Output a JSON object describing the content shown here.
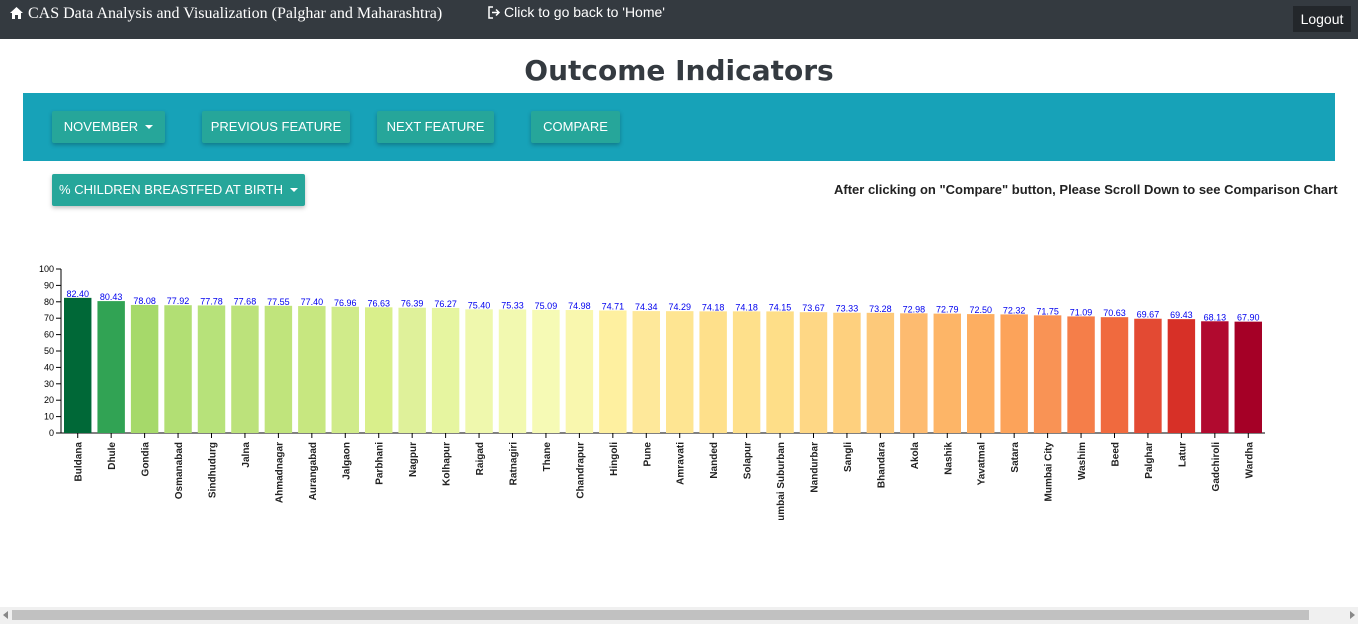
{
  "navbar": {
    "brand": "CAS Data Analysis and Visualization (Palghar and Maharashtra)",
    "home_link": "Click to go back to 'Home'",
    "logout": "Logout"
  },
  "page_title": "Outcome Indicators",
  "toolbar": {
    "month": "NOVEMBER",
    "previous": "PREVIOUS FEATURE",
    "next": "NEXT FEATURE",
    "compare": "COMPARE"
  },
  "feature_select": "% CHILDREN BREASTFED AT BIRTH",
  "note": "After clicking on \"Compare\" button, Please Scroll Down to see Comparison Chart",
  "chart_data": {
    "type": "bar",
    "categories": [
      "Buldana",
      "Dhule",
      "Gondia",
      "Osmanabad",
      "Sindhudurg",
      "Jalna",
      "Ahmadnagar",
      "Aurangabad",
      "Jalgaon",
      "Parbhani",
      "Nagpur",
      "Kolhapur",
      "Raigad",
      "Ratnagiri",
      "Thane",
      "Chandrapur",
      "Hingoli",
      "Pune",
      "Amravati",
      "Nanded",
      "Solapur",
      "Mumbai Suburban",
      "Nandurbar",
      "Sangli",
      "Bhandara",
      "Akola",
      "Nashik",
      "Yavatmal",
      "Satara",
      "Mumbai City",
      "Washim",
      "Beed",
      "Palghar",
      "Latur",
      "Gadchiroli",
      "Wardha"
    ],
    "values": [
      82.4,
      80.43,
      78.08,
      77.92,
      77.78,
      77.68,
      77.55,
      77.4,
      76.96,
      76.63,
      76.39,
      76.27,
      75.4,
      75.33,
      75.09,
      74.98,
      74.71,
      74.34,
      74.29,
      74.18,
      74.18,
      74.15,
      73.67,
      73.33,
      73.28,
      72.98,
      72.79,
      72.5,
      72.32,
      71.75,
      71.09,
      70.63,
      69.67,
      69.43,
      68.13,
      67.9
    ],
    "value_labels": [
      "82.40",
      "80.43",
      "78.08",
      "77.92",
      "77.78",
      "77.68",
      "77.55",
      "77.40",
      "76.96",
      "76.63",
      "76.39",
      "76.27",
      "75.40",
      "75.33",
      "75.09",
      "74.98",
      "74.71",
      "74.34",
      "74.29",
      "74.18",
      "74.18",
      "74.15",
      "73.67",
      "73.33",
      "73.28",
      "72.98",
      "72.79",
      "72.50",
      "72.32",
      "71.75",
      "71.09",
      "70.63",
      "69.67",
      "69.43",
      "68.13",
      "67.90"
    ],
    "colors": [
      "#006837",
      "#31a354",
      "#a6d96a",
      "#b2df74",
      "#b7e27a",
      "#bce27b",
      "#c0e47c",
      "#c7e780",
      "#d0eb8a",
      "#d9ef8b",
      "#dff19a",
      "#e6f5a0",
      "#eff8ad",
      "#f2f9b0",
      "#f6fab5",
      "#f9f7ae",
      "#fef0a0",
      "#fee89a",
      "#fee592",
      "#fee08b",
      "#fee08b",
      "#fede88",
      "#fed785",
      "#fed07e",
      "#fdc97a",
      "#fdbb70",
      "#fdb567",
      "#fdae61",
      "#fca35a",
      "#f99355",
      "#f57e49",
      "#f06a3e",
      "#e34a33",
      "#d73027",
      "#b10a2f",
      "#a50026"
    ],
    "ylim": [
      0,
      100
    ],
    "yticks": [
      0,
      10,
      20,
      30,
      40,
      50,
      60,
      70,
      80,
      90,
      100
    ],
    "grid": false,
    "value_label_color": "#0000ee"
  }
}
